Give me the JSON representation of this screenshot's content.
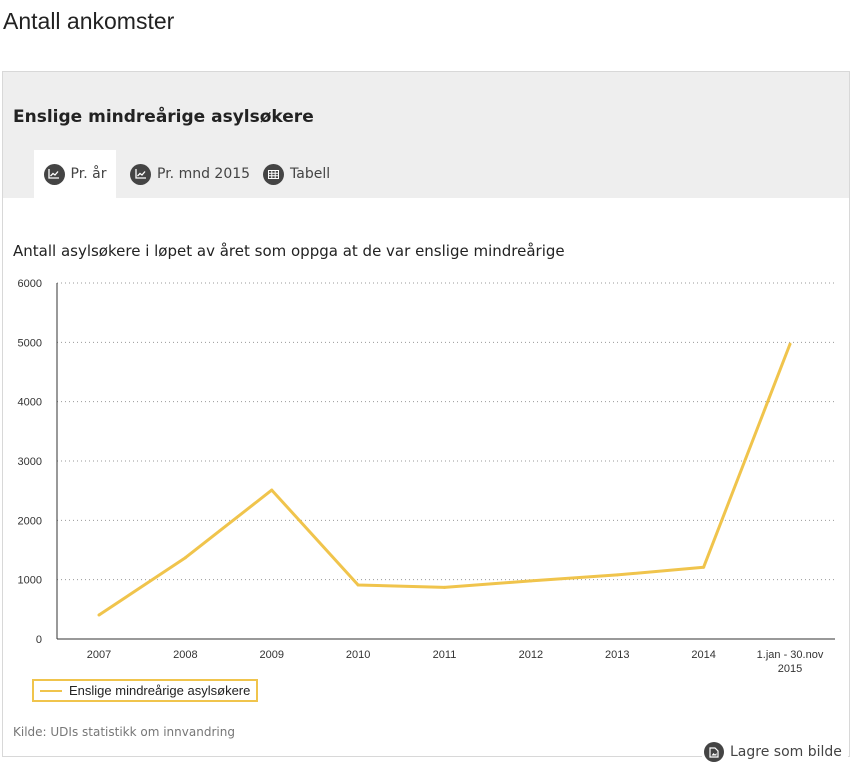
{
  "page_title": "Antall ankomster",
  "card_title": "Enslige mindreårige asylsøkere",
  "tabs": [
    {
      "label": "Pr. år",
      "icon": "line-chart-icon",
      "active": true
    },
    {
      "label": "Pr. mnd 2015",
      "icon": "line-chart-icon",
      "active": false
    },
    {
      "label": "Tabell",
      "icon": "table-icon",
      "active": false
    }
  ],
  "source": "Kilde: UDIs statistikk om innvandring",
  "save_label": "Lagre som bilde",
  "chart_data": {
    "type": "line",
    "title": "Antall asylsøkere i løpet av året som oppga at de var enslige mindreårige",
    "categories": [
      "2007",
      "2008",
      "2009",
      "2010",
      "2011",
      "2012",
      "2013",
      "2014",
      "1.jan - 30.nov 2015"
    ],
    "series": [
      {
        "name": "Enslige mindreårige asylsøkere",
        "color": "#f0c44c",
        "values": [
          404,
          1370,
          2510,
          910,
          870,
          980,
          1080,
          1210,
          4970
        ]
      }
    ],
    "ylim": [
      0,
      6000
    ],
    "yticks": [
      "0",
      "1000",
      "2000",
      "3000",
      "4000",
      "5000",
      "6000"
    ],
    "grid": true,
    "legend": "bottom-left"
  }
}
